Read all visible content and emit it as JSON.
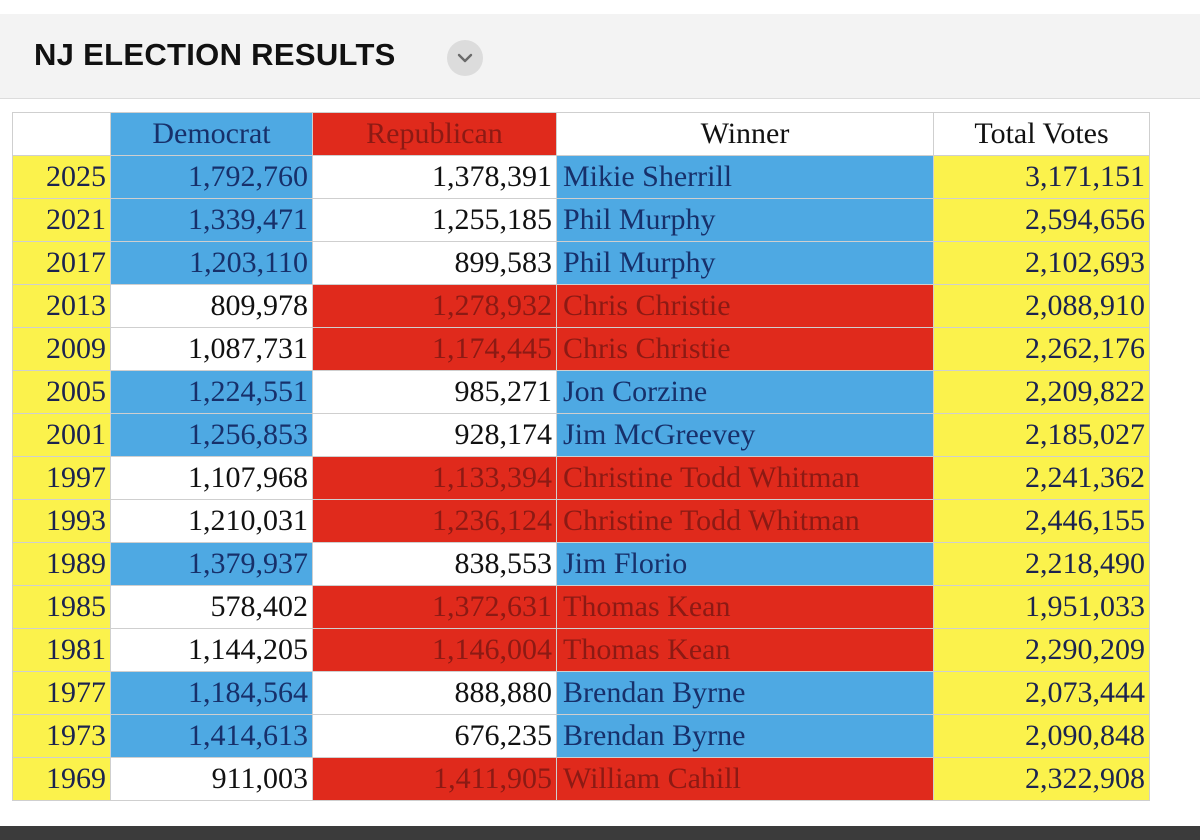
{
  "header": {
    "title": "NJ ELECTION RESULTS",
    "dropdown_icon": "chevron-down-icon"
  },
  "colors": {
    "democrat": "#4ea9e3",
    "republican": "#e02a1c",
    "year_column": "#fbf24c",
    "total_column": "#fbf24c",
    "header_bar": "#f3f3f3"
  },
  "table": {
    "columns": [
      "",
      "Democrat",
      "Republican",
      "Winner",
      "Total Votes"
    ],
    "rows": [
      {
        "year": "2025",
        "democrat": "1,792,760",
        "republican": "1,378,391",
        "winner": "Mikie Sherrill",
        "total": "3,171,151",
        "party": "D"
      },
      {
        "year": "2021",
        "democrat": "1,339,471",
        "republican": "1,255,185",
        "winner": "Phil Murphy",
        "total": "2,594,656",
        "party": "D"
      },
      {
        "year": "2017",
        "democrat": "1,203,110",
        "republican": "899,583",
        "winner": "Phil Murphy",
        "total": "2,102,693",
        "party": "D"
      },
      {
        "year": "2013",
        "democrat": "809,978",
        "republican": "1,278,932",
        "winner": "Chris Christie",
        "total": "2,088,910",
        "party": "R"
      },
      {
        "year": "2009",
        "democrat": "1,087,731",
        "republican": "1,174,445",
        "winner": "Chris Christie",
        "total": "2,262,176",
        "party": "R"
      },
      {
        "year": "2005",
        "democrat": "1,224,551",
        "republican": "985,271",
        "winner": "Jon Corzine",
        "total": "2,209,822",
        "party": "D"
      },
      {
        "year": "2001",
        "democrat": "1,256,853",
        "republican": "928,174",
        "winner": "Jim McGreevey",
        "total": "2,185,027",
        "party": "D"
      },
      {
        "year": "1997",
        "democrat": "1,107,968",
        "republican": "1,133,394",
        "winner": "Christine Todd Whitman",
        "total": "2,241,362",
        "party": "R"
      },
      {
        "year": "1993",
        "democrat": "1,210,031",
        "republican": "1,236,124",
        "winner": "Christine Todd Whitman",
        "total": "2,446,155",
        "party": "R"
      },
      {
        "year": "1989",
        "democrat": "1,379,937",
        "republican": "838,553",
        "winner": "Jim Florio",
        "total": "2,218,490",
        "party": "D"
      },
      {
        "year": "1985",
        "democrat": "578,402",
        "republican": "1,372,631",
        "winner": "Thomas Kean",
        "total": "1,951,033",
        "party": "R"
      },
      {
        "year": "1981",
        "democrat": "1,144,205",
        "republican": "1,146,004",
        "winner": "Thomas Kean",
        "total": "2,290,209",
        "party": "R"
      },
      {
        "year": "1977",
        "democrat": "1,184,564",
        "republican": "888,880",
        "winner": "Brendan Byrne",
        "total": "2,073,444",
        "party": "D"
      },
      {
        "year": "1973",
        "democrat": "1,414,613",
        "republican": "676,235",
        "winner": "Brendan Byrne",
        "total": "2,090,848",
        "party": "D"
      },
      {
        "year": "1969",
        "democrat": "911,003",
        "republican": "1,411,905",
        "winner": "William Cahill",
        "total": "2,322,908",
        "party": "R"
      }
    ]
  }
}
